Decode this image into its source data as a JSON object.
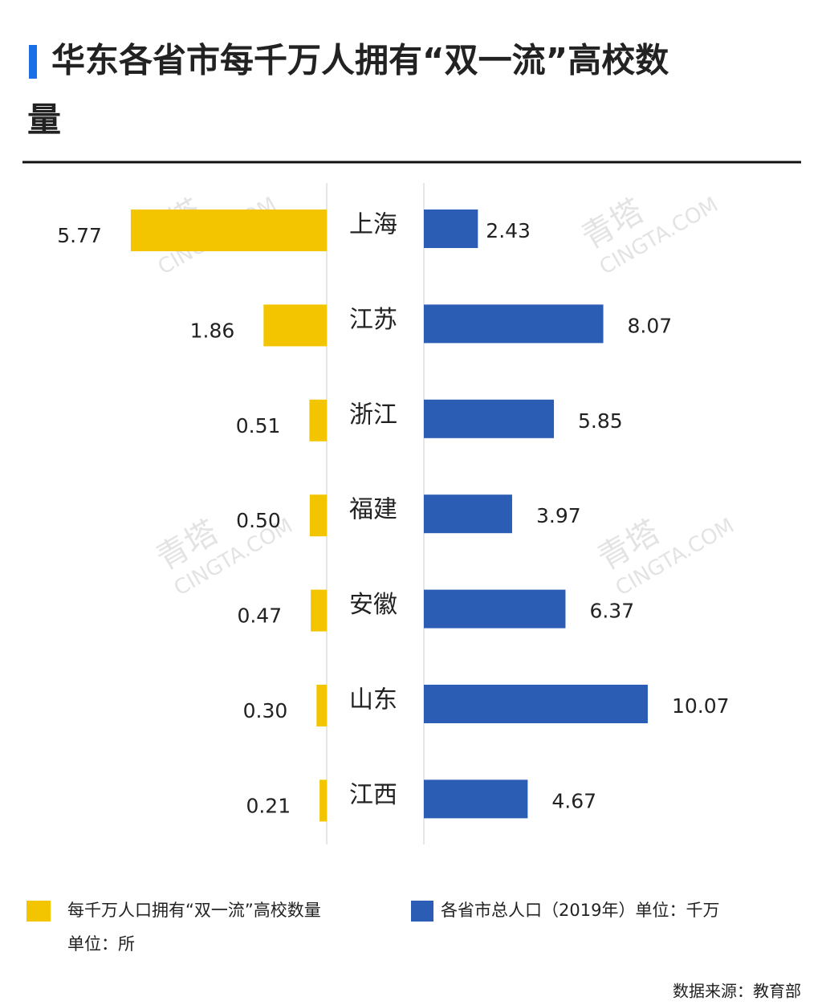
{
  "chart_data": {
    "type": "butterfly",
    "title": "华东各省市每千万人拥有“双一流”高校数量",
    "categories": [
      "上海",
      "江苏",
      "浙江",
      "福建",
      "安徽",
      "山东",
      "江西"
    ],
    "series": [
      {
        "name": "每千万人口拥有“双一流”高校数量",
        "unit": "单位：所",
        "color": "#f2c500",
        "values": [
          5.77,
          1.86,
          0.51,
          0.5,
          0.47,
          0.3,
          0.21
        ],
        "value_labels": [
          "5.77",
          "1.86",
          "0.51",
          "0.50",
          "0.47",
          "0.30",
          "0.21"
        ]
      },
      {
        "name": "各省市总人口（2019年）单位：千万",
        "color": "#2b5db4",
        "values": [
          2.43,
          8.07,
          5.85,
          3.97,
          6.37,
          10.07,
          4.67
        ]
      }
    ],
    "source": "数据来源：教育部",
    "watermark": "青塔",
    "watermark_url": "CINGTA.COM"
  }
}
